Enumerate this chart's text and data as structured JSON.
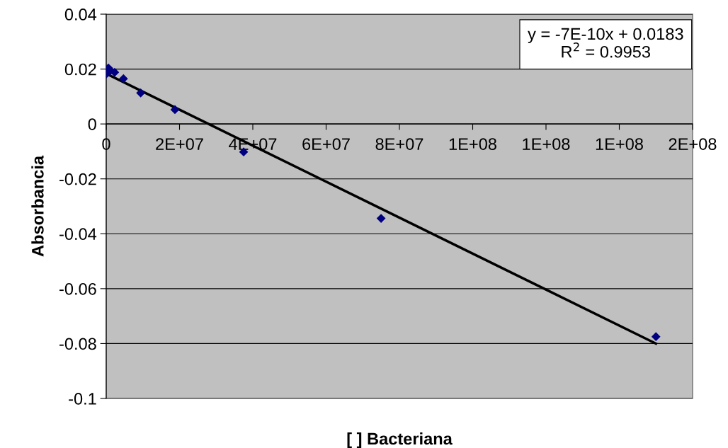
{
  "chart_data": {
    "type": "scatter",
    "xlabel": "[ ] Bacteriana",
    "ylabel": "Absorbancia",
    "annotations": [
      "y = -7E-10x + 0.0183\nR$^{2}$ = 0.9953"
    ],
    "series": [
      {
        "color": "#000080",
        "marker": "diamond",
        "x": [
          0,
          590000,
          1200000,
          2300000,
          4700000,
          9400000,
          18750000,
          37500000,
          75000000,
          150000000
        ],
        "values": [
          0.0182,
          0.0204,
          0.0195,
          0.0188,
          0.0165,
          0.0113,
          0.0052,
          -0.0102,
          -0.0344,
          -0.0775
        ]
      },
      {
        "type": "line",
        "color": "#000000",
        "marker": "none",
        "x": [
          0,
          150000000
        ],
        "values": [
          0.0183,
          -0.08
        ]
      }
    ],
    "xlim": [
      0,
      160000000
    ],
    "xticks": [
      0,
      {
        "value": 20000000,
        "label": "2E+07"
      },
      {
        "value": 40000000,
        "label": "4E+07"
      },
      {
        "value": 60000000,
        "label": "6E+07"
      },
      {
        "value": 80000000,
        "label": "8E+07"
      },
      {
        "value": 100000000,
        "label": "1E+08"
      },
      {
        "value": 120000000,
        "label": "1E+08"
      },
      {
        "value": 140000000,
        "label": "1E+08"
      },
      {
        "value": 160000000,
        "label": "2E+08"
      }
    ],
    "ylim": [
      -0.1,
      0.04
    ],
    "yticks": [
      -0.1,
      -0.08,
      -0.06,
      -0.04,
      -0.02,
      0,
      0.02,
      0.04
    ],
    "grid": "y"
  }
}
